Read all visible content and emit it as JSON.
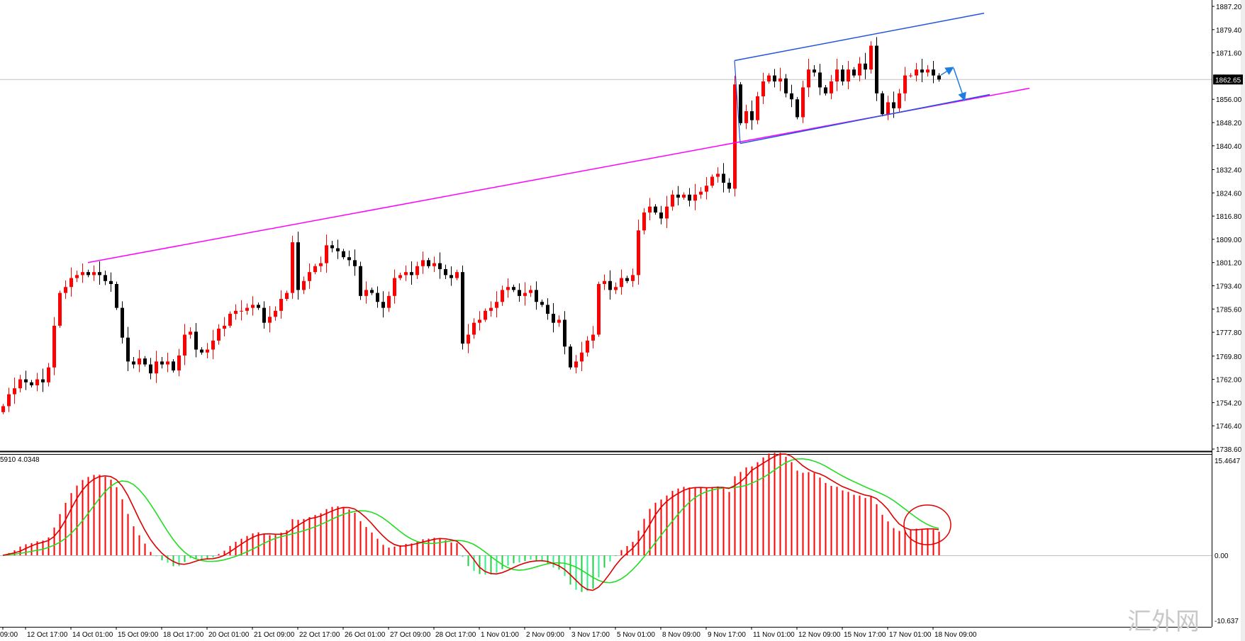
{
  "chart_data": {
    "type": "candlestick",
    "title": "",
    "timeframe_hours": 4,
    "indicator_label": "5910 4.0348",
    "current_price": 1862.65,
    "price_ticks": [
      "1887.20",
      "1879.40",
      "1871.60",
      "1856.00",
      "1848.20",
      "1840.40",
      "1832.40",
      "1824.60",
      "1816.80",
      "1809.00",
      "1801.20",
      "1793.40",
      "1785.60",
      "1777.80",
      "1769.80",
      "1762.00",
      "1754.20",
      "1746.40",
      "1738.60"
    ],
    "ylim": [
      1738.6,
      1887.2
    ],
    "indicator_ticks": [
      "15.4647",
      "0.00",
      "-10.637"
    ],
    "indicator_ylim": [
      -10.637,
      15.4647
    ],
    "time_labels": [
      {
        "label": "09:00",
        "bar": 0
      },
      {
        "label": "12 Oct 17:00",
        "bar": 4
      },
      {
        "label": "14 Oct 01:00",
        "bar": 12
      },
      {
        "label": "15 Oct 09:00",
        "bar": 20
      },
      {
        "label": "18 Oct 17:00",
        "bar": 28
      },
      {
        "label": "20 Oct 01:00",
        "bar": 36
      },
      {
        "label": "21 Oct 09:00",
        "bar": 44
      },
      {
        "label": "22 Oct 17:00",
        "bar": 52
      },
      {
        "label": "26 Oct 01:00",
        "bar": 60
      },
      {
        "label": "27 Oct 09:00",
        "bar": 68
      },
      {
        "label": "28 Oct 17:00",
        "bar": 76
      },
      {
        "label": "1 Nov 01:00",
        "bar": 84
      },
      {
        "label": "2 Nov 09:00",
        "bar": 92
      },
      {
        "label": "3 Nov 17:00",
        "bar": 100
      },
      {
        "label": "5 Nov 01:00",
        "bar": 108
      },
      {
        "label": "8 Nov 09:00",
        "bar": 116
      },
      {
        "label": "9 Nov 17:00",
        "bar": 124
      },
      {
        "label": "11 Nov 01:00",
        "bar": 132
      },
      {
        "label": "12 Nov 09:00",
        "bar": 140
      },
      {
        "label": "15 Nov 17:00",
        "bar": 148
      },
      {
        "label": "17 Nov 01:00",
        "bar": 156
      },
      {
        "label": "18 Nov 09:00",
        "bar": 164
      }
    ],
    "closes": [
      1753,
      1757,
      1759,
      1762,
      1761,
      1760,
      1762,
      1761,
      1766,
      1780,
      1791,
      1793,
      1796,
      1797,
      1798,
      1797,
      1798,
      1797,
      1795,
      1794,
      1786,
      1776,
      1768,
      1767,
      1769,
      1767,
      1764,
      1768,
      1767,
      1768,
      1765,
      1770,
      1777,
      1778,
      1772,
      1771,
      1772,
      1775,
      1779,
      1780,
      1784,
      1785,
      1785,
      1786,
      1787,
      1786,
      1781,
      1783,
      1785,
      1789,
      1791,
      1808,
      1792,
      1795,
      1798,
      1800,
      1801,
      1807,
      1806,
      1805,
      1803,
      1802,
      1800,
      1790,
      1792,
      1791,
      1788,
      1786,
      1790,
      1796,
      1797,
      1798,
      1797,
      1800,
      1802,
      1800,
      1801,
      1799,
      1797,
      1796,
      1798,
      1774,
      1777,
      1781,
      1782,
      1785,
      1786,
      1788,
      1792,
      1793,
      1792,
      1790,
      1791,
      1792,
      1788,
      1787,
      1784,
      1781,
      1782,
      1773,
      1766,
      1768,
      1771,
      1775,
      1777,
      1794,
      1795,
      1792,
      1793,
      1796,
      1795,
      1797,
      1812,
      1818,
      1820,
      1818,
      1816,
      1820,
      1824,
      1823,
      1824,
      1822,
      1824,
      1825,
      1827,
      1830,
      1831,
      1828,
      1826,
      1861,
      1848,
      1852,
      1849,
      1857,
      1862,
      1864,
      1862,
      1863,
      1858,
      1856,
      1850,
      1860,
      1866,
      1865,
      1860,
      1858,
      1862,
      1866,
      1862,
      1866,
      1864,
      1868,
      1866,
      1874,
      1858,
      1851,
      1855,
      1853,
      1858,
      1864,
      1864,
      1866,
      1865,
      1866,
      1864,
      1862.65
    ],
    "trendlines": [
      {
        "name": "support-resistance-line",
        "color": "#ff00ff",
        "from": {
          "bar": 15,
          "price": 1801.2
        },
        "to": {
          "bar": 181,
          "price": 1859.7
        }
      },
      {
        "name": "channel-upper-line",
        "color": "#2255dd",
        "from": {
          "bar": 129,
          "price": 1869.0
        },
        "to": {
          "bar": 173,
          "price": 1884.9
        }
      },
      {
        "name": "channel-lower-line",
        "color": "#2255dd",
        "from": {
          "bar": 130,
          "price": 1841.2
        },
        "to": {
          "bar": 174,
          "price": 1857.6
        }
      }
    ],
    "colors": {
      "bull": "#ff0000",
      "bear": "#000000",
      "macd_pos": "#ff0000",
      "macd_neg": "#22cc44",
      "signal_fast": "#dd0000",
      "signal_slow": "#22dd22",
      "highlight": "#e00000"
    }
  },
  "watermark": "汇外网"
}
